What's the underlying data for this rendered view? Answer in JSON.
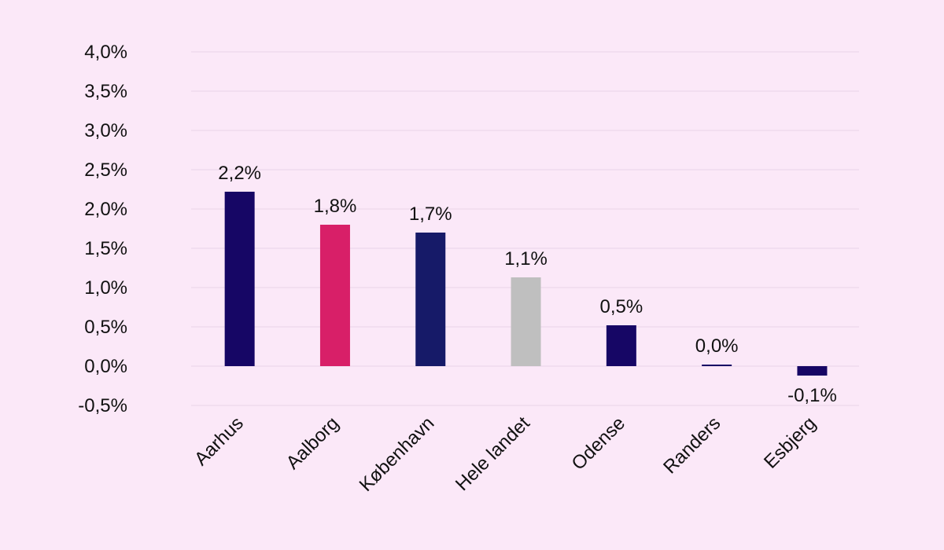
{
  "chart_data": {
    "type": "bar",
    "title": "",
    "xlabel": "",
    "ylabel": "",
    "ylim": [
      -0.5,
      4.0
    ],
    "yticks": [
      -0.5,
      0.0,
      0.5,
      1.0,
      1.5,
      2.0,
      2.5,
      3.0,
      3.5,
      4.0
    ],
    "ytick_labels": [
      "-0,5%",
      "0,0%",
      "0,5%",
      "1,0%",
      "1,5%",
      "2,0%",
      "2,5%",
      "3,0%",
      "3,5%",
      "4,0%"
    ],
    "grid": true,
    "legend": "none",
    "categories": [
      "Aarhus",
      "Aalborg",
      "København",
      "Hele landet",
      "Odense",
      "Randers",
      "Esbjerg"
    ],
    "values": [
      2.22,
      1.8,
      1.7,
      1.13,
      0.52,
      0.02,
      -0.12
    ],
    "data_labels": [
      "2,2%",
      "1,8%",
      "1,7%",
      "1,1%",
      "0,5%",
      "0,0%",
      "-0,1%"
    ],
    "colors": [
      "#160665",
      "#d81f68",
      "#161a68",
      "#bfbfbf",
      "#160665",
      "#160665",
      "#160665"
    ]
  },
  "background_color": "#fbe8f8",
  "gridline_color": "#ead3e8"
}
